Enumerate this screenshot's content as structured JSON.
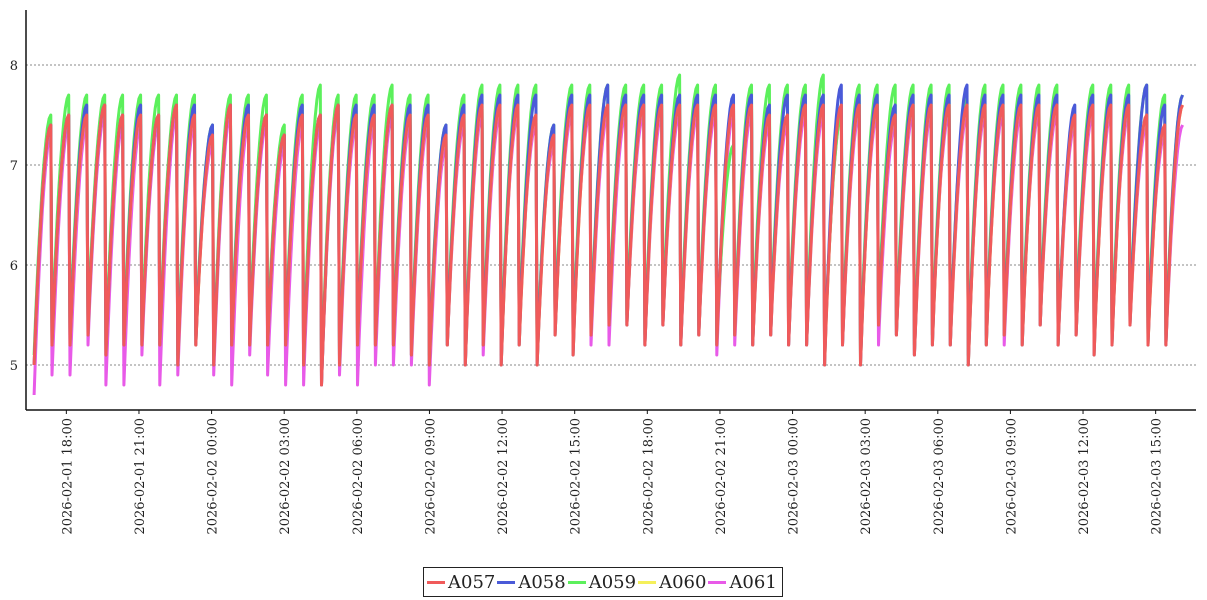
{
  "chart_data": {
    "type": "line",
    "title": "",
    "xlabel": "",
    "ylabel": "",
    "ylim": [
      4.55,
      8.55
    ],
    "yticks": [
      5,
      6,
      7,
      8
    ],
    "ytick_labels": [
      "5",
      "6",
      "7",
      "8"
    ],
    "xlim": [
      "2026-02-01 16:20",
      "2026-02-03 16:40"
    ],
    "xtick_labels": [
      "2026-02-01 18:00",
      "2026-02-01 21:00",
      "2026-02-02 00:00",
      "2026-02-02 03:00",
      "2026-02-02 06:00",
      "2026-02-02 09:00",
      "2026-02-02 12:00",
      "2026-02-02 15:00",
      "2026-02-02 18:00",
      "2026-02-02 21:00",
      "2026-02-03 00:00",
      "2026-02-03 03:00",
      "2026-02-03 06:00",
      "2026-02-03 09:00",
      "2026-02-03 12:00",
      "2026-02-03 15:00"
    ],
    "grid": "horizontal dotted",
    "legend_position": "bottom-center",
    "pattern": "sawtooth cycles of roughly 45 minutes: sharp drop to a trough near 5, then gradual rise to a peak near 7.5",
    "x_start": "2026-02-01 16:40",
    "x_end": "2026-02-03 16:10",
    "series": [
      {
        "name": "A057",
        "color": "#f05a5a",
        "peaks": [
          7.4,
          7.5,
          7.5,
          7.6,
          7.5,
          7.5,
          7.5,
          7.6,
          7.5,
          7.3,
          7.6,
          7.5,
          7.5,
          7.3,
          7.5,
          7.5,
          7.6,
          7.5,
          7.5,
          7.6,
          7.5,
          7.5,
          7.3,
          7.5,
          7.6,
          7.6,
          7.6,
          7.5,
          7.3,
          7.6,
          7.6,
          7.6,
          7.6,
          7.6,
          7.6,
          7.6,
          7.6,
          7.6,
          7.6,
          7.6,
          7.5,
          7.5,
          7.6,
          7.6,
          7.6,
          7.6,
          7.6,
          7.5,
          7.6,
          7.6,
          7.6,
          7.6,
          7.6,
          7.6,
          7.6,
          7.6,
          7.6,
          7.5,
          7.6,
          7.6,
          7.6,
          7.5,
          7.4,
          7.6
        ],
        "troughs": [
          5.0,
          5.2,
          5.2,
          5.3,
          5.1,
          5.2,
          5.2,
          5.2,
          5.0,
          5.2,
          5.0,
          5.2,
          5.2,
          5.2,
          5.2,
          5.0,
          4.8,
          5.0,
          5.2,
          5.2,
          5.2,
          5.1,
          5.0,
          5.2,
          5.0,
          5.2,
          5.0,
          5.2,
          5.0,
          5.3,
          5.1,
          5.3,
          5.4,
          5.4,
          5.2,
          5.4,
          5.2,
          5.3,
          5.2,
          5.3,
          5.2,
          5.3,
          5.2,
          5.2,
          5.0,
          5.2,
          5.0,
          5.4,
          5.3,
          5.1,
          5.2,
          5.2,
          5.0,
          5.2,
          5.3,
          5.2,
          5.4,
          5.2,
          5.3,
          5.1,
          5.2,
          5.4,
          5.2,
          5.2
        ]
      },
      {
        "name": "A058",
        "color": "#4a5ad8",
        "peaks": [
          7.4,
          7.5,
          7.6,
          7.6,
          7.5,
          7.6,
          7.5,
          7.6,
          7.6,
          7.4,
          7.6,
          7.6,
          7.5,
          7.3,
          7.6,
          7.5,
          7.6,
          7.6,
          7.6,
          7.6,
          7.6,
          7.6,
          7.4,
          7.6,
          7.7,
          7.7,
          7.7,
          7.7,
          7.4,
          7.7,
          7.7,
          7.8,
          7.7,
          7.7,
          7.7,
          7.7,
          7.7,
          7.7,
          7.7,
          7.7,
          7.6,
          7.7,
          7.7,
          7.7,
          7.8,
          7.7,
          7.7,
          7.6,
          7.7,
          7.7,
          7.7,
          7.8,
          7.7,
          7.7,
          7.7,
          7.7,
          7.7,
          7.6,
          7.7,
          7.7,
          7.7,
          7.8,
          7.6,
          7.7
        ],
        "troughs": [
          5.0,
          5.2,
          5.2,
          5.3,
          5.1,
          5.2,
          5.2,
          5.2,
          5.0,
          5.2,
          5.0,
          5.2,
          5.2,
          5.2,
          5.2,
          5.0,
          4.8,
          5.0,
          5.2,
          5.2,
          5.2,
          5.1,
          5.0,
          5.2,
          5.0,
          5.2,
          5.0,
          5.2,
          5.0,
          5.3,
          5.1,
          5.3,
          5.4,
          5.4,
          5.2,
          5.4,
          5.2,
          5.3,
          5.2,
          5.3,
          5.2,
          5.3,
          5.2,
          5.2,
          5.0,
          5.2,
          5.0,
          5.4,
          5.3,
          5.1,
          5.2,
          5.2,
          5.0,
          5.2,
          5.3,
          5.2,
          5.4,
          5.2,
          5.3,
          5.1,
          5.2,
          5.4,
          5.2,
          5.2
        ]
      },
      {
        "name": "A059",
        "color": "#5cf05c",
        "peaks": [
          7.5,
          7.7,
          7.7,
          7.7,
          7.7,
          7.7,
          7.7,
          7.7,
          7.7,
          7.4,
          7.7,
          7.7,
          7.7,
          7.4,
          7.7,
          7.8,
          7.7,
          7.7,
          7.7,
          7.8,
          7.7,
          7.7,
          7.4,
          7.7,
          7.8,
          7.8,
          7.8,
          7.8,
          7.4,
          7.8,
          7.8,
          7.8,
          7.8,
          7.8,
          7.8,
          7.9,
          7.8,
          7.8,
          7.2,
          7.8,
          7.8,
          7.8,
          7.8,
          7.9,
          7.5,
          7.8,
          7.8,
          7.8,
          7.8,
          7.8,
          7.8,
          7.7,
          7.8,
          7.8,
          7.8,
          7.8,
          7.8,
          7.5,
          7.8,
          7.8,
          7.8,
          7.8,
          7.7,
          7.7
        ],
        "troughs": [
          5.1,
          5.3,
          5.3,
          5.4,
          5.2,
          5.3,
          5.3,
          5.3,
          5.1,
          5.3,
          5.1,
          5.3,
          5.3,
          5.3,
          5.3,
          5.1,
          4.9,
          5.1,
          5.3,
          5.3,
          5.3,
          5.2,
          5.1,
          5.3,
          5.1,
          5.3,
          5.1,
          5.3,
          5.1,
          5.4,
          5.2,
          5.4,
          5.5,
          5.5,
          5.3,
          5.5,
          5.3,
          5.4,
          5.3,
          5.4,
          5.3,
          5.4,
          5.3,
          5.3,
          5.1,
          5.3,
          5.1,
          5.5,
          5.4,
          5.2,
          5.3,
          5.3,
          5.1,
          5.3,
          5.4,
          5.3,
          5.5,
          5.3,
          5.4,
          5.2,
          5.3,
          5.5,
          5.3,
          5.3
        ]
      },
      {
        "name": "A060",
        "color": "#f5f05a",
        "peaks": [
          7.4,
          7.5,
          7.5,
          7.6,
          7.5,
          7.5,
          7.5,
          7.6,
          7.5,
          7.3,
          7.6,
          7.5,
          7.5,
          7.3,
          7.5,
          7.5,
          7.6,
          7.5,
          7.5,
          7.6,
          7.5,
          7.5,
          7.3,
          7.5,
          7.6,
          7.6,
          7.6,
          7.5,
          7.3,
          7.6,
          7.6,
          7.6,
          7.6,
          7.6,
          7.6,
          7.6,
          7.6,
          7.6,
          7.6,
          7.6,
          7.5,
          7.5,
          7.6,
          7.6,
          7.6,
          7.6,
          7.6,
          7.5,
          7.6,
          7.6,
          7.6,
          7.6,
          7.6,
          7.6,
          7.6,
          7.6,
          7.6,
          7.5,
          7.6,
          7.6,
          7.6,
          7.5,
          7.4,
          7.6
        ],
        "troughs": [
          5.0,
          5.2,
          5.2,
          5.3,
          5.1,
          5.2,
          5.2,
          5.2,
          5.0,
          5.2,
          5.0,
          5.2,
          5.2,
          5.2,
          5.2,
          5.0,
          4.8,
          5.0,
          5.2,
          5.2,
          5.2,
          5.1,
          5.0,
          5.2,
          5.0,
          5.2,
          5.0,
          5.2,
          5.0,
          5.3,
          5.1,
          5.3,
          5.4,
          5.4,
          5.2,
          5.4,
          5.2,
          5.3,
          5.2,
          5.3,
          5.2,
          5.3,
          5.2,
          5.2,
          5.0,
          5.2,
          5.0,
          5.4,
          5.3,
          5.1,
          5.2,
          5.2,
          5.0,
          5.2,
          5.3,
          5.2,
          5.4,
          5.2,
          5.3,
          5.1,
          5.2,
          5.4,
          5.2,
          5.2
        ]
      },
      {
        "name": "A061",
        "color": "#e85ae8",
        "peaks": [
          7.3,
          7.4,
          7.4,
          7.5,
          7.4,
          7.4,
          7.4,
          7.5,
          7.4,
          7.2,
          7.5,
          7.4,
          7.4,
          7.2,
          7.4,
          7.4,
          7.5,
          7.4,
          7.4,
          7.5,
          7.4,
          7.4,
          7.2,
          7.4,
          7.5,
          7.5,
          7.5,
          7.4,
          7.2,
          7.5,
          7.5,
          7.5,
          7.5,
          7.5,
          7.5,
          7.5,
          7.5,
          7.5,
          7.5,
          7.5,
          7.4,
          7.4,
          7.5,
          7.5,
          7.5,
          7.5,
          7.5,
          7.4,
          7.5,
          7.5,
          7.5,
          7.5,
          7.5,
          7.5,
          7.5,
          7.5,
          7.5,
          7.4,
          7.5,
          7.5,
          7.5,
          7.4,
          7.3,
          7.4
        ],
        "troughs": [
          4.7,
          4.9,
          4.9,
          5.2,
          4.8,
          4.8,
          5.1,
          4.8,
          4.9,
          5.3,
          4.9,
          4.8,
          5.1,
          4.9,
          4.8,
          4.8,
          4.8,
          4.9,
          4.8,
          5.0,
          5.0,
          5.0,
          4.8,
          5.2,
          5.0,
          5.1,
          5.1,
          5.3,
          5.2,
          5.4,
          5.3,
          5.2,
          5.2,
          5.4,
          5.2,
          5.4,
          5.2,
          5.3,
          5.1,
          5.2,
          5.2,
          5.3,
          5.2,
          5.2,
          5.1,
          5.2,
          5.1,
          5.2,
          5.3,
          5.1,
          5.3,
          5.2,
          5.1,
          5.3,
          5.2,
          5.3,
          5.4,
          5.2,
          5.3,
          5.2,
          5.3,
          5.4,
          5.3,
          5.2
        ]
      }
    ]
  }
}
